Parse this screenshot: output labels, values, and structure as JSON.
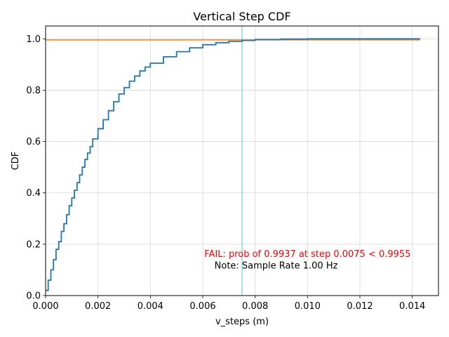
{
  "chart_data": {
    "type": "line",
    "title": "Vertical Step CDF",
    "xlabel": "v_steps (m)",
    "ylabel": "CDF",
    "xlim": [
      0,
      0.015
    ],
    "ylim": [
      0,
      1.05
    ],
    "x_ticks": [
      0,
      0.002,
      0.004,
      0.006,
      0.008,
      0.01,
      0.012,
      0.014
    ],
    "x_tick_labels": [
      "0.000",
      "0.002",
      "0.004",
      "0.006",
      "0.008",
      "0.010",
      "0.012",
      "0.014"
    ],
    "y_ticks": [
      0,
      0.2,
      0.4,
      0.6,
      0.8,
      1.0
    ],
    "y_tick_labels": [
      "0.0",
      "0.2",
      "0.4",
      "0.6",
      "0.8",
      "1.0"
    ],
    "grid": true,
    "series": [
      {
        "color": "#1f77b4",
        "kind": "step",
        "x": [
          0,
          0.0001,
          0.0002,
          0.0003,
          0.0004,
          0.0005,
          0.0006,
          0.0007,
          0.0008,
          0.0009,
          0.001,
          0.0011,
          0.0012,
          0.0013,
          0.0014,
          0.0015,
          0.0016,
          0.0017,
          0.0018,
          0.002,
          0.0022,
          0.0024,
          0.0026,
          0.0028,
          0.003,
          0.0032,
          0.0034,
          0.0036,
          0.0038,
          0.004,
          0.0045,
          0.005,
          0.0055,
          0.006,
          0.0065,
          0.007,
          0.0075,
          0.008,
          0.009,
          0.01,
          0.011,
          0.012,
          0.013,
          0.0143
        ],
        "y": [
          0.02,
          0.06,
          0.1,
          0.14,
          0.18,
          0.21,
          0.25,
          0.28,
          0.315,
          0.35,
          0.38,
          0.41,
          0.44,
          0.47,
          0.5,
          0.53,
          0.555,
          0.58,
          0.61,
          0.65,
          0.685,
          0.72,
          0.755,
          0.785,
          0.81,
          0.835,
          0.855,
          0.875,
          0.89,
          0.905,
          0.93,
          0.95,
          0.965,
          0.977,
          0.985,
          0.99,
          0.9937,
          0.997,
          0.999,
          1.0,
          1.0,
          1.0,
          1.0,
          1.0
        ]
      },
      {
        "color": "#ff7f0e",
        "kind": "hline",
        "y": 0.9955,
        "x_range": [
          0,
          0.0143
        ]
      },
      {
        "color": "#17becf",
        "kind": "vline",
        "x": 0.0075
      }
    ],
    "annotations": [
      {
        "text": "FAIL: prob of 0.9937 at step 0.0075 < 0.9955",
        "color": "#ff0000",
        "x": 0.01,
        "y": 0.15
      },
      {
        "text": "Note: Sample Rate 1.00 Hz",
        "color": "#000000",
        "x": 0.0088,
        "y": 0.105
      }
    ]
  }
}
